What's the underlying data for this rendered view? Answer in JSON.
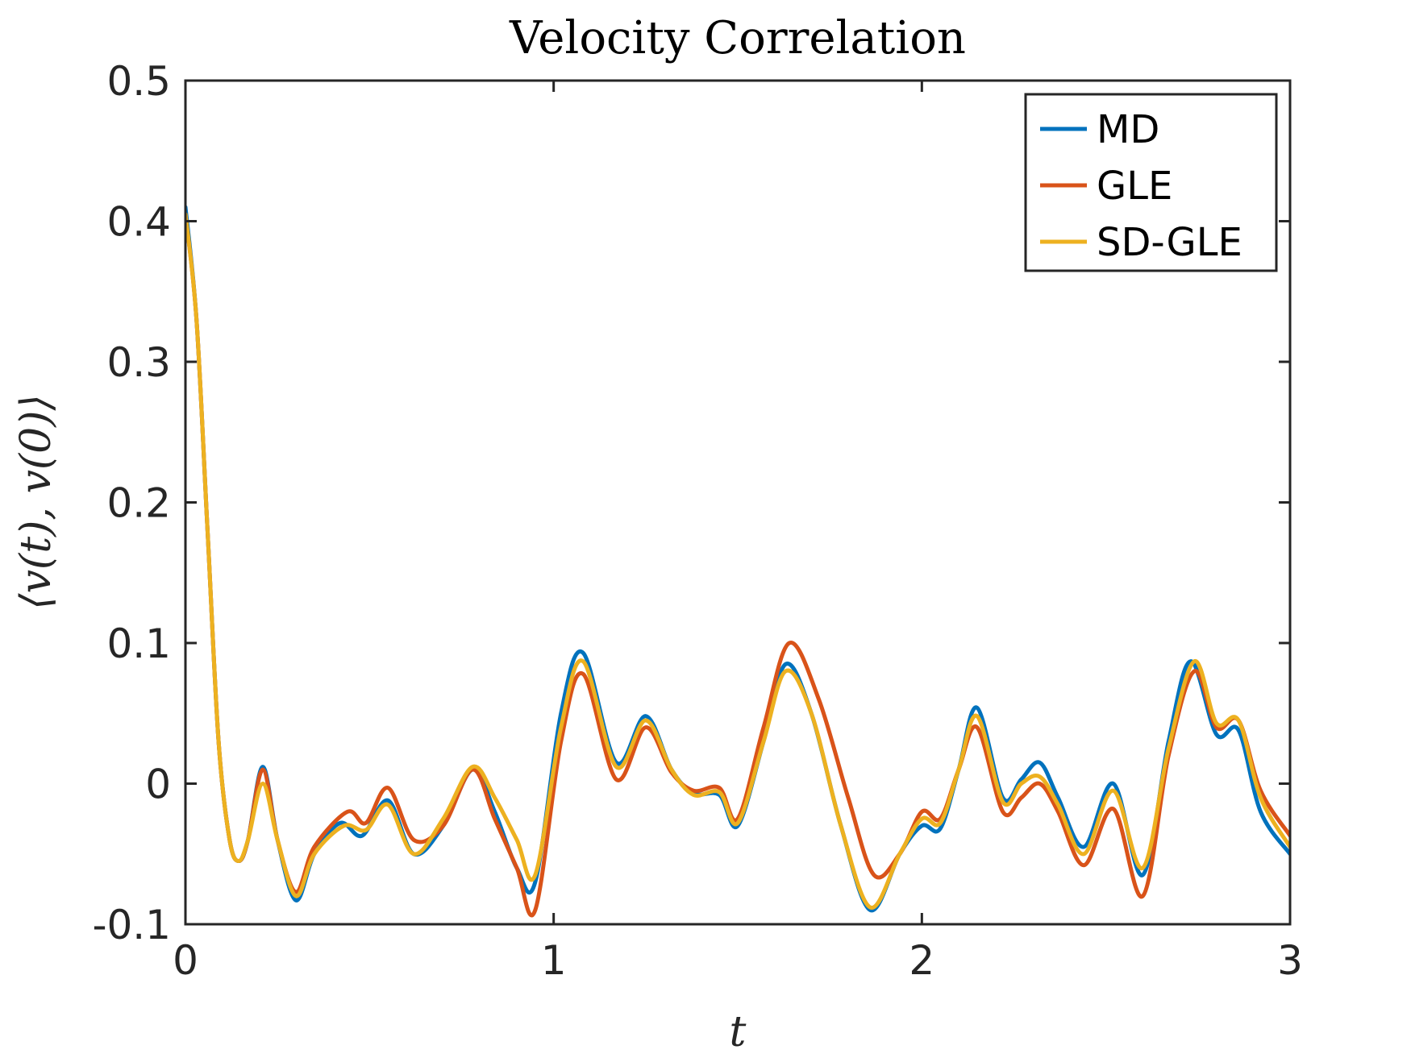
{
  "chart_data": {
    "type": "line",
    "title": "Velocity Correlation",
    "xlabel": "t",
    "ylabel": "⟨v(t), v(0)⟩",
    "xlim": [
      0,
      3
    ],
    "ylim": [
      -0.1,
      0.5
    ],
    "xticks": [
      0,
      1,
      2,
      3
    ],
    "xtick_labels": [
      "0",
      "1",
      "2",
      "3"
    ],
    "yticks": [
      -0.1,
      0,
      0.1,
      0.2,
      0.3,
      0.4,
      0.5
    ],
    "ytick_labels": [
      "-0.1",
      "0",
      "0.1",
      "0.2",
      "0.3",
      "0.4",
      "0.5"
    ],
    "grid": false,
    "legend_position": "top-right",
    "series": [
      {
        "name": "MD",
        "color": "#0072BD",
        "x": [
          0,
          0.03,
          0.06,
          0.09,
          0.12,
          0.145,
          0.17,
          0.21,
          0.25,
          0.3,
          0.35,
          0.42,
          0.48,
          0.55,
          0.62,
          0.7,
          0.78,
          0.84,
          0.9,
          0.95,
          1.02,
          1.08,
          1.17,
          1.25,
          1.32,
          1.38,
          1.45,
          1.5,
          1.57,
          1.63,
          1.7,
          1.78,
          1.86,
          1.94,
          2.0,
          2.05,
          2.1,
          2.15,
          2.22,
          2.27,
          2.32,
          2.37,
          2.44,
          2.52,
          2.6,
          2.67,
          2.73,
          2.8,
          2.86,
          2.92,
          3.0
        ],
        "values": [
          0.41,
          0.33,
          0.18,
          0.03,
          -0.04,
          -0.055,
          -0.04,
          0.012,
          -0.04,
          -0.083,
          -0.05,
          -0.028,
          -0.037,
          -0.012,
          -0.05,
          -0.03,
          0.01,
          -0.02,
          -0.06,
          -0.07,
          0.05,
          0.093,
          0.015,
          0.048,
          0.01,
          -0.007,
          -0.008,
          -0.03,
          0.03,
          0.085,
          0.05,
          -0.03,
          -0.09,
          -0.05,
          -0.03,
          -0.032,
          0.01,
          0.054,
          -0.01,
          0.003,
          0.015,
          -0.01,
          -0.045,
          0.0,
          -0.065,
          0.03,
          0.087,
          0.035,
          0.038,
          -0.02,
          -0.05
        ]
      },
      {
        "name": "GLE",
        "color": "#D95319",
        "x": [
          0,
          0.03,
          0.06,
          0.09,
          0.12,
          0.145,
          0.17,
          0.21,
          0.25,
          0.3,
          0.35,
          0.44,
          0.49,
          0.55,
          0.62,
          0.7,
          0.78,
          0.84,
          0.9,
          0.95,
          1.02,
          1.08,
          1.17,
          1.25,
          1.32,
          1.38,
          1.45,
          1.5,
          1.57,
          1.64,
          1.72,
          1.8,
          1.87,
          1.94,
          2.0,
          2.05,
          2.1,
          2.15,
          2.22,
          2.27,
          2.32,
          2.37,
          2.44,
          2.52,
          2.6,
          2.67,
          2.74,
          2.8,
          2.86,
          2.92,
          3.0
        ],
        "values": [
          0.405,
          0.33,
          0.18,
          0.03,
          -0.04,
          -0.055,
          -0.04,
          0.01,
          -0.04,
          -0.077,
          -0.045,
          -0.02,
          -0.028,
          -0.003,
          -0.04,
          -0.03,
          0.01,
          -0.025,
          -0.06,
          -0.09,
          0.03,
          0.078,
          0.003,
          0.04,
          0.008,
          -0.005,
          -0.003,
          -0.025,
          0.04,
          0.1,
          0.06,
          -0.01,
          -0.065,
          -0.05,
          -0.02,
          -0.025,
          0.01,
          0.04,
          -0.02,
          -0.01,
          0.0,
          -0.02,
          -0.058,
          -0.018,
          -0.08,
          0.02,
          0.08,
          0.04,
          0.045,
          -0.005,
          -0.037
        ]
      },
      {
        "name": "SD-GLE",
        "color": "#EDB120",
        "x": [
          0,
          0.03,
          0.06,
          0.09,
          0.12,
          0.145,
          0.17,
          0.21,
          0.25,
          0.3,
          0.35,
          0.43,
          0.49,
          0.55,
          0.62,
          0.7,
          0.78,
          0.84,
          0.9,
          0.95,
          1.02,
          1.08,
          1.17,
          1.25,
          1.32,
          1.38,
          1.45,
          1.5,
          1.57,
          1.63,
          1.7,
          1.78,
          1.86,
          1.94,
          2.0,
          2.05,
          2.1,
          2.15,
          2.22,
          2.27,
          2.32,
          2.37,
          2.44,
          2.52,
          2.6,
          2.67,
          2.74,
          2.8,
          2.86,
          2.92,
          3.0
        ],
        "values": [
          0.405,
          0.33,
          0.18,
          0.03,
          -0.04,
          -0.055,
          -0.04,
          0.0,
          -0.04,
          -0.08,
          -0.05,
          -0.03,
          -0.033,
          -0.015,
          -0.05,
          -0.025,
          0.012,
          -0.01,
          -0.04,
          -0.065,
          0.04,
          0.087,
          0.012,
          0.045,
          0.01,
          -0.008,
          -0.006,
          -0.028,
          0.03,
          0.08,
          0.05,
          -0.03,
          -0.088,
          -0.05,
          -0.025,
          -0.028,
          0.01,
          0.048,
          -0.013,
          0.0,
          0.005,
          -0.015,
          -0.05,
          -0.005,
          -0.06,
          0.025,
          0.087,
          0.043,
          0.045,
          -0.01,
          -0.045
        ]
      }
    ]
  }
}
